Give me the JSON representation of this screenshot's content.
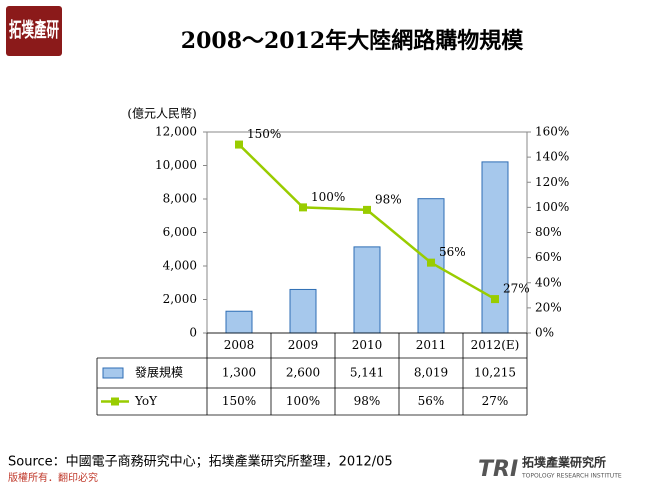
{
  "logo": "拓墣產研",
  "chart_data": {
    "type": "bar",
    "title": "2008～2012年大陸網路購物規模",
    "y_label": "(億元人民幣)",
    "categories": [
      "2008",
      "2009",
      "2010",
      "2011",
      "2012(E)"
    ],
    "series": [
      {
        "name": "發展規模",
        "type": "bar",
        "color": "#a6c8ec",
        "values": [
          1300,
          2600,
          5141,
          8019,
          10215
        ],
        "value_labels": [
          "1,300",
          "2,600",
          "5,141",
          "8,019",
          "10,215"
        ]
      },
      {
        "name": "YoY",
        "type": "line",
        "axis": "y2",
        "color": "#99cc00",
        "values": [
          150,
          100,
          98,
          56,
          27
        ],
        "value_labels": [
          "150%",
          "100%",
          "98%",
          "56%",
          "27%"
        ]
      }
    ],
    "ylim": [
      0,
      12000
    ],
    "yticks": [
      0,
      {
        "value": 2000,
        "label": "2,000"
      },
      {
        "value": 4000,
        "label": "4,000"
      },
      {
        "value": 6000,
        "label": "6,000"
      },
      {
        "value": 8000,
        "label": "8,000"
      },
      {
        "value": 10000,
        "label": "10,000"
      },
      {
        "value": 12000,
        "label": "12,000"
      }
    ],
    "y2lim": [
      0,
      160
    ],
    "y2ticks": [
      {
        "value": 0,
        "label": "0%"
      },
      {
        "value": 20,
        "label": "20%"
      },
      {
        "value": 40,
        "label": "40%"
      },
      {
        "value": 60,
        "label": "60%"
      },
      {
        "value": 80,
        "label": "80%"
      },
      {
        "value": 100,
        "label": "100%"
      },
      {
        "value": 120,
        "label": "120%"
      },
      {
        "value": 140,
        "label": "140%"
      },
      {
        "value": 160,
        "label": "160%"
      }
    ]
  },
  "source": "Source：中國電子商務研究中心；拓墣產業研究所整理，2012/05",
  "copyright": "版權所有．翻印必究",
  "brand": {
    "mark": "TRI",
    "name": "拓墣產業研究所",
    "english": "TOPOLOGY RESEARCH INSTITUTE"
  }
}
